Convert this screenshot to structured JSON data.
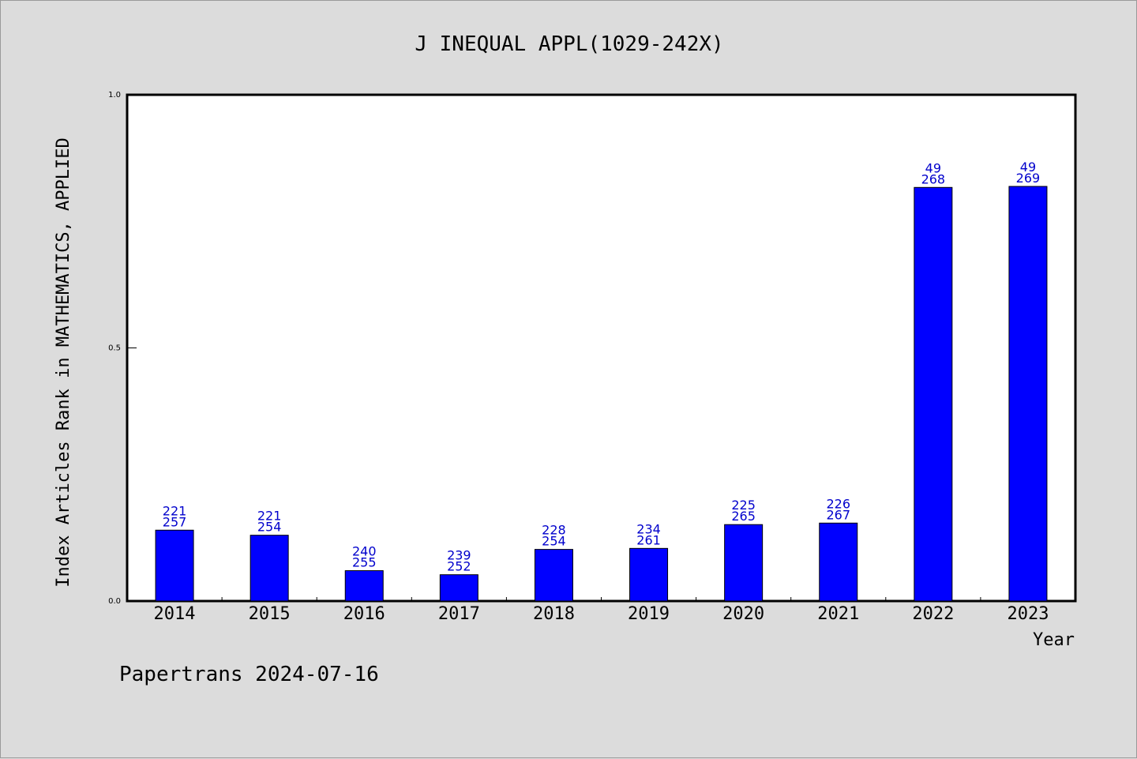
{
  "chart_data": {
    "type": "bar",
    "title": "J INEQUAL APPL(1029-242X)",
    "xlabel": "Year",
    "ylabel": "Index Articles Rank in MATHEMATICS, APPLIED",
    "ylim": [
      0.0,
      1.0
    ],
    "yticks": [
      "0.0",
      "0.5",
      "1.0"
    ],
    "categories": [
      "2014",
      "2015",
      "2016",
      "2017",
      "2018",
      "2019",
      "2020",
      "2021",
      "2022",
      "2023"
    ],
    "values": [
      0.14,
      0.13,
      0.06,
      0.052,
      0.102,
      0.104,
      0.151,
      0.154,
      0.817,
      0.819
    ],
    "ranks": [
      "221",
      "221",
      "240",
      "239",
      "228",
      "234",
      "225",
      "226",
      "49",
      "49"
    ],
    "totals": [
      "257",
      "254",
      "255",
      "252",
      "254",
      "261",
      "265",
      "267",
      "268",
      "269"
    ],
    "bar_color": "#0000ff",
    "label_color": "#0000cc",
    "grid": false,
    "legend": "none"
  },
  "footer": {
    "credit": "Papertrans 2024-07-16"
  }
}
